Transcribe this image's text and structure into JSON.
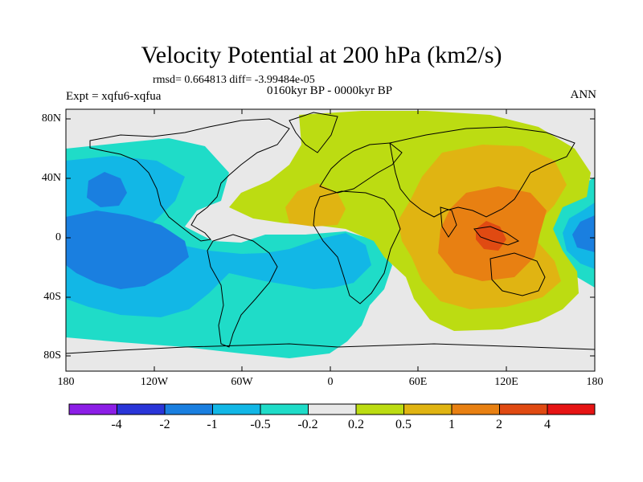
{
  "header": {
    "title": "Velocity Potential at 200 hPa (km2/s)",
    "stats": "rmsd= 0.664813 diff= -3.99484e-05",
    "experiment": "Expt = xqfu6-xqfua",
    "subtitle": "0160kyr BP - 0000kyr BP",
    "season": "ANN"
  },
  "axes": {
    "lat_labels": [
      "80N",
      "40N",
      "0",
      "40S",
      "80S"
    ],
    "lon_labels": [
      "180",
      "120W",
      "60W",
      "0",
      "60E",
      "120E",
      "180"
    ]
  },
  "colorbar": {
    "labels": [
      "-4",
      "-2",
      "-1",
      "-0.5",
      "-0.2",
      "0.2",
      "0.5",
      "1",
      "2",
      "4"
    ],
    "colors": [
      "#8c1ee6",
      "#2a35d8",
      "#1a7fe0",
      "#12b7e6",
      "#1fdcc8",
      "#e8e8e8",
      "#bcdc12",
      "#e0b412",
      "#e88012",
      "#e04a12",
      "#e61414"
    ]
  },
  "map_legend": {
    "levels": {
      "neg_strong": "-1",
      "neg_mod": "-0.5",
      "neg_weak": "-0.2",
      "pos_weak": "0.2",
      "pos_mod": "0.5",
      "pos_strong": "1",
      "pos_max": "2"
    }
  }
}
